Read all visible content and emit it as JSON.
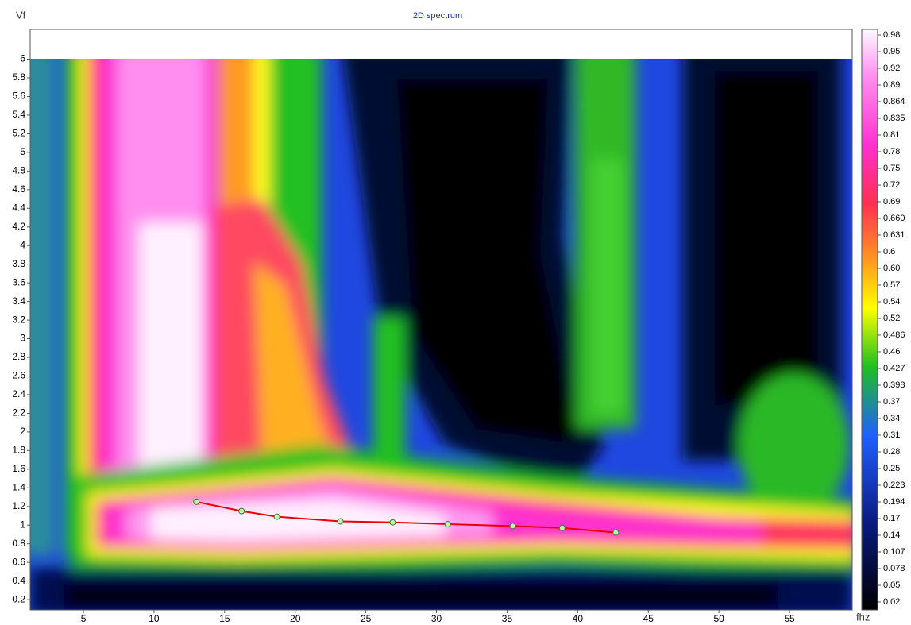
{
  "chart_data": {
    "type": "line",
    "title": "2D spectrum",
    "y_label": "Vf",
    "x_label": "fhz",
    "x": [
      13.0,
      16.2,
      18.7,
      23.2,
      26.9,
      30.8,
      35.4,
      38.9,
      42.7
    ],
    "values": [
      1.25,
      1.15,
      1.09,
      1.04,
      1.03,
      1.01,
      0.99,
      0.97,
      0.92
    ],
    "color": "#ee0000",
    "marker_color": "#b8ffb0",
    "xlim": [
      1.23,
      59.44
    ],
    "ylim": [
      0.09,
      6.32
    ],
    "xticks": [
      5,
      10,
      15,
      20,
      25,
      30,
      35,
      40,
      45,
      50,
      55
    ],
    "yticks": [
      0.2,
      0.4,
      0.6,
      0.8,
      1,
      1.2,
      1.4,
      1.6,
      1.8,
      2,
      2.2,
      2.4,
      2.6,
      2.8,
      3,
      3.2,
      3.4,
      3.6,
      3.8,
      4,
      4.2,
      4.4,
      4.6,
      4.8,
      5,
      5.2,
      5.4,
      5.6,
      5.8,
      6
    ],
    "colorbar_ticks": [
      0.98,
      0.95,
      0.92,
      0.89,
      0.864,
      0.835,
      0.81,
      0.78,
      0.75,
      0.72,
      0.69,
      {
        "value": 0.66,
        "label": "0.660"
      },
      0.631,
      0.6,
      {
        "value": 0.6,
        "label": "0.60"
      },
      0.57,
      0.54,
      0.52,
      0.486,
      0.46,
      0.427,
      0.398,
      0.37,
      0.34,
      0.31,
      0.28,
      0.25,
      0.223,
      0.194,
      0.17,
      0.14,
      0.107,
      0.078,
      0.05,
      0.02
    ]
  }
}
